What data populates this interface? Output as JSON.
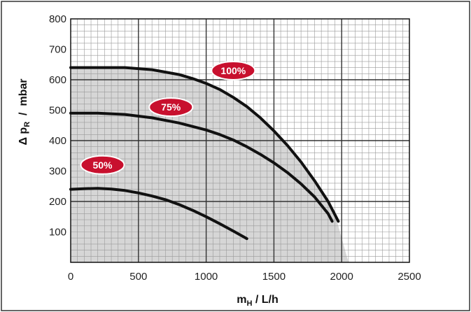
{
  "chart_data": {
    "type": "line",
    "xlabel": "m",
    "xlabel_sub": "H",
    "xlabel_unit": " / L/h",
    "ylabel_prefix": "Δ p",
    "ylabel_sub": "R",
    "ylabel_unit": "  /  mbar",
    "xlim": [
      0,
      2500
    ],
    "ylim": [
      0,
      800
    ],
    "xticks": [
      0,
      500,
      1000,
      1500,
      2000,
      2500
    ],
    "yticks": [
      100,
      200,
      300,
      400,
      500,
      600,
      700,
      800
    ],
    "grid": true,
    "shaded_region": {
      "x": [
        0,
        200,
        400,
        600,
        800,
        1000,
        1200,
        1400,
        1600,
        1800,
        1950,
        2050,
        2050,
        0
      ],
      "y": [
        640,
        640,
        640,
        632,
        615,
        585,
        545,
        480,
        390,
        270,
        160,
        0,
        0,
        0
      ]
    },
    "series": [
      {
        "name": "100%",
        "color": "#111111",
        "x": [
          0,
          200,
          400,
          600,
          800,
          900,
          1000,
          1100,
          1200,
          1300,
          1400,
          1500,
          1600,
          1700,
          1800,
          1900,
          1975
        ],
        "y": [
          640,
          640,
          640,
          633,
          617,
          604,
          588,
          568,
          542,
          512,
          475,
          432,
          384,
          330,
          268,
          200,
          135
        ],
        "label_at": [
          1200,
          630
        ]
      },
      {
        "name": "75%",
        "color": "#111111",
        "x": [
          0,
          200,
          400,
          600,
          800,
          1000,
          1100,
          1200,
          1300,
          1400,
          1500,
          1600,
          1700,
          1800,
          1900,
          1930
        ],
        "y": [
          490,
          490,
          486,
          475,
          458,
          435,
          420,
          402,
          380,
          355,
          327,
          295,
          258,
          215,
          160,
          135
        ],
        "label_at": [
          740,
          510
        ]
      },
      {
        "name": "50%",
        "color": "#111111",
        "x": [
          0,
          100,
          200,
          300,
          400,
          500,
          600,
          700,
          800,
          900,
          1000,
          1100,
          1200,
          1300
        ],
        "y": [
          240,
          242,
          243,
          241,
          236,
          228,
          218,
          206,
          190,
          171,
          150,
          127,
          103,
          78
        ],
        "label_at": [
          235,
          320
        ]
      }
    ],
    "badge_color": "#c8102e"
  }
}
